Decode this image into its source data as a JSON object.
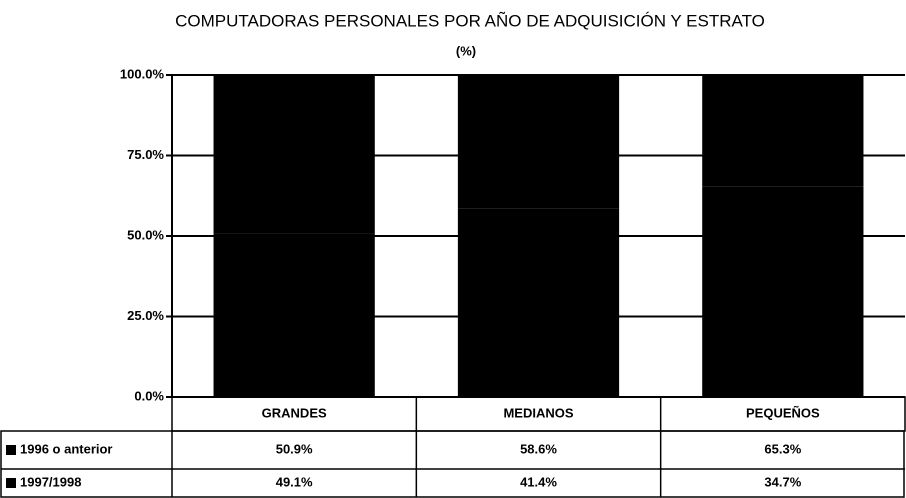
{
  "chart_data": {
    "type": "stacked_bar_table",
    "title": "COMPUTADORAS PERSONALES POR AÑO DE ADQUISICIÓN Y ESTRATO",
    "subtitle": "(%)",
    "categories": [
      "GRANDES",
      "MEDIANOS",
      "PEQUEÑOS"
    ],
    "series": [
      {
        "name": "1996 o anterior",
        "color": "#000000",
        "values": [
          50.9,
          58.6,
          65.3
        ],
        "value_labels": [
          "50.9%",
          "58.6%",
          "65.3%"
        ]
      },
      {
        "name": "1997/1998",
        "color": "#000000",
        "values": [
          49.1,
          41.4,
          34.7
        ],
        "value_labels": [
          "49.1%",
          "41.4%",
          "34.7%"
        ]
      }
    ],
    "ylim": [
      0,
      100
    ],
    "yticks": [
      {
        "value": 0,
        "label": "0.0%"
      },
      {
        "value": 25,
        "label": "25.0%"
      },
      {
        "value": 50,
        "label": "50.0%"
      },
      {
        "value": 75,
        "label": "75.0%"
      },
      {
        "value": 100,
        "label": "100.0%"
      }
    ],
    "grid": true
  }
}
